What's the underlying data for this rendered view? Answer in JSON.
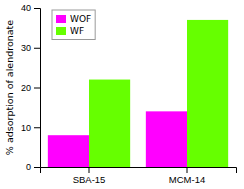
{
  "chart_data": {
    "type": "bar",
    "categories": [
      "SBA-15",
      "MCM-14"
    ],
    "series": [
      {
        "name": "WOF",
        "color": "#FF00FF",
        "values": [
          8,
          14
        ]
      },
      {
        "name": "WF",
        "color": "#66FF00",
        "values": [
          22,
          37
        ]
      }
    ],
    "ylabel": "% adsorption of alendronate",
    "ylim": [
      0,
      40
    ],
    "yticks": [
      0,
      10,
      20,
      30,
      40
    ],
    "legend": "upper left"
  }
}
